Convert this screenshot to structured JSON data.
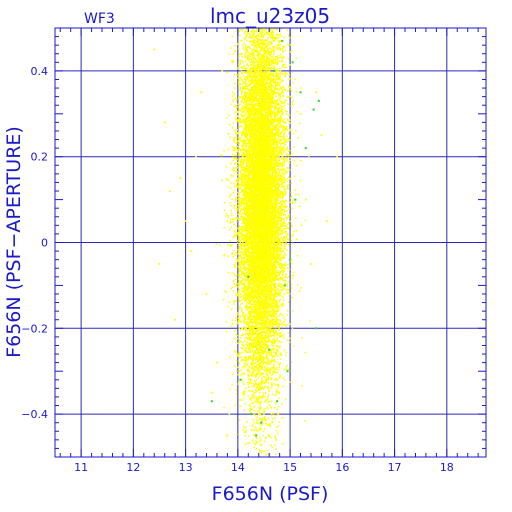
{
  "chart_data": {
    "type": "scatter",
    "title": "lmc_u23z05",
    "panel_label": "WF3",
    "xlabel": "F656N (PSF)",
    "ylabel": "F656N (PSF−APERTURE)",
    "xlim": [
      10.5,
      18.75
    ],
    "ylim": [
      -0.5,
      0.5
    ],
    "grid": true,
    "x_ticks": [
      11,
      12,
      13,
      14,
      15,
      16,
      17,
      18
    ],
    "x_tick_labels": [
      "11",
      "12",
      "13",
      "14",
      "15",
      "16",
      "17",
      "18"
    ],
    "y_ticks": [
      -0.4,
      -0.2,
      0,
      0.2,
      0.4
    ],
    "y_tick_labels": [
      "−0.4",
      "−0.2",
      "0",
      "0.2",
      "0.4"
    ],
    "colors": {
      "axes": "#1a1acc",
      "grid": "#2a2ab8",
      "points": "#ffff00",
      "highlight_points": "#22dd22"
    },
    "series": [
      {
        "distribution": {
          "x_center": 14.45,
          "x_spread": 0.22,
          "y_center": 0.1,
          "y_spread": 0.22,
          "approx_count": 14000
        },
        "points": [
          [
            12.4,
            0.45
          ],
          [
            12.5,
            -0.05
          ],
          [
            12.6,
            0.28
          ],
          [
            12.7,
            0.12
          ],
          [
            12.8,
            -0.18
          ],
          [
            12.9,
            0.15
          ],
          [
            13.0,
            0.05
          ],
          [
            13.1,
            -0.02
          ],
          [
            13.2,
            0.2
          ],
          [
            13.3,
            0.35
          ],
          [
            13.4,
            -0.12
          ],
          [
            13.5,
            -0.35
          ],
          [
            13.6,
            -0.28
          ],
          [
            13.7,
            0.4
          ],
          [
            13.8,
            -0.45
          ],
          [
            13.9,
            0.42
          ],
          [
            15.2,
            0.3
          ],
          [
            15.3,
            0.1
          ],
          [
            15.4,
            -0.05
          ],
          [
            15.5,
            0.35
          ],
          [
            15.6,
            0.25
          ],
          [
            15.7,
            0.05
          ],
          [
            15.9,
            0.2
          ]
        ]
      },
      {
        "points": [
          [
            14.05,
            -0.32
          ],
          [
            14.25,
            -0.4
          ],
          [
            14.45,
            -0.42
          ],
          [
            14.6,
            -0.25
          ],
          [
            14.75,
            -0.37
          ],
          [
            14.9,
            -0.1
          ],
          [
            15.05,
            0.42
          ],
          [
            15.2,
            0.35
          ],
          [
            15.3,
            0.22
          ],
          [
            15.45,
            0.31
          ],
          [
            15.5,
            -0.2
          ],
          [
            14.85,
            0.47
          ],
          [
            15.0,
            -0.04
          ],
          [
            14.35,
            -0.45
          ],
          [
            14.7,
            0.4
          ],
          [
            15.1,
            0.1
          ],
          [
            14.2,
            -0.08
          ],
          [
            13.5,
            -0.37
          ],
          [
            15.55,
            0.33
          ],
          [
            14.95,
            -0.3
          ]
        ]
      }
    ]
  }
}
